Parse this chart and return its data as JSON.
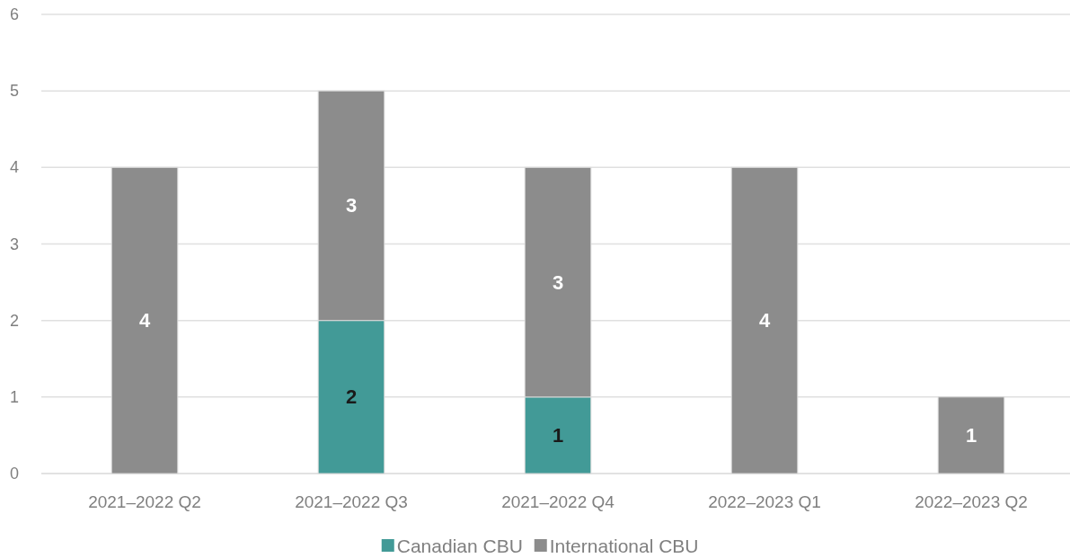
{
  "chart_data": {
    "type": "bar",
    "stacked": true,
    "categories": [
      "2021–2022 Q2",
      "2021–2022 Q3",
      "2021–2022 Q4",
      "2022–2023 Q1",
      "2022–2023 Q2"
    ],
    "series": [
      {
        "name": "Canadian CBU",
        "color": "#429a97",
        "values": [
          null,
          2,
          1,
          null,
          null
        ]
      },
      {
        "name": "International CBU",
        "color": "#8c8c8c",
        "values": [
          4,
          3,
          3,
          4,
          1
        ]
      }
    ],
    "ylim": [
      0,
      6
    ],
    "yticks": [
      0,
      1,
      2,
      3,
      4,
      5,
      6
    ],
    "grid": "y",
    "legend": "bottom",
    "data_labels": true
  }
}
